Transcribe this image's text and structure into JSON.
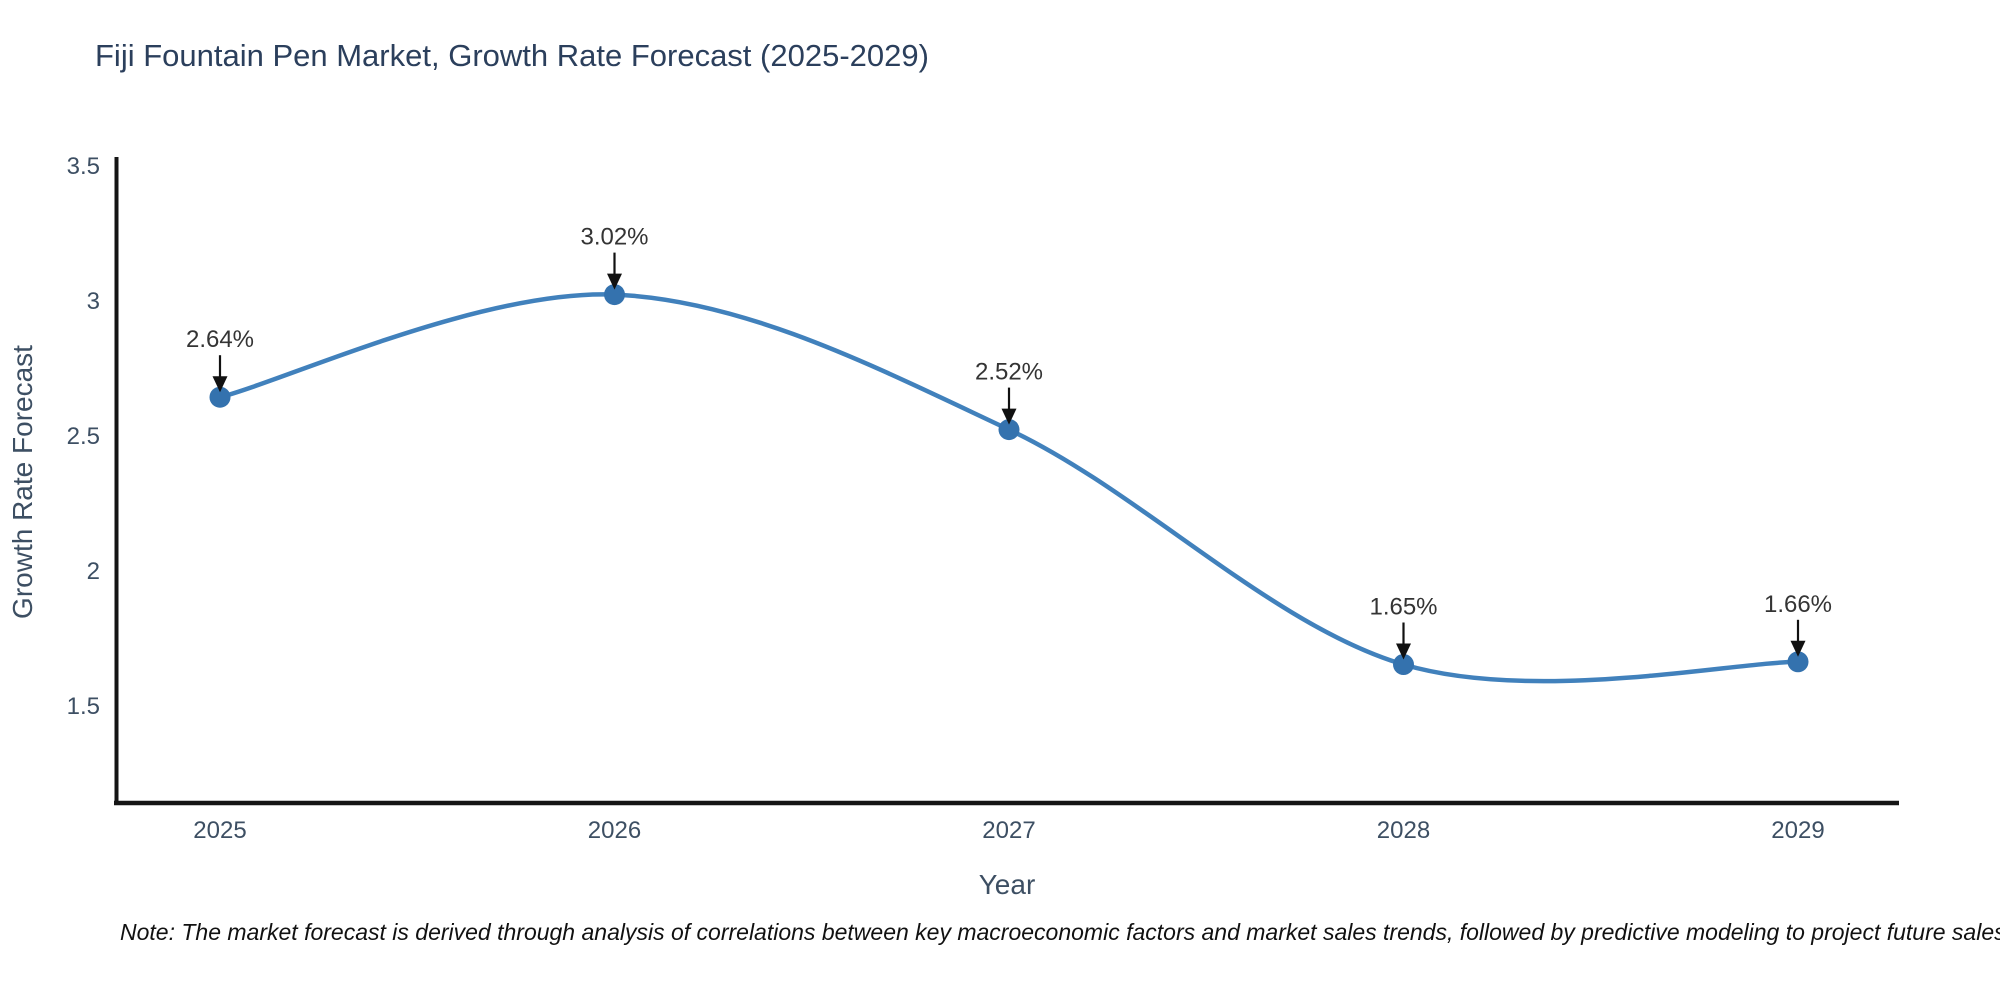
{
  "chart_data": {
    "type": "line",
    "title": "Fiji Fountain Pen Market, Growth Rate Forecast (2025-2029)",
    "xlabel": "Year",
    "ylabel": "Growth Rate Forecast",
    "categories": [
      "2025",
      "2026",
      "2027",
      "2028",
      "2029"
    ],
    "values": [
      2.64,
      3.02,
      2.52,
      1.65,
      1.66
    ],
    "point_labels": [
      "2.64%",
      "3.02%",
      "2.52%",
      "1.65%",
      "1.66%"
    ],
    "yticks": [
      "3.5",
      "3",
      "2.5",
      "2",
      "1.5"
    ],
    "ytick_values": [
      3.5,
      3.0,
      2.5,
      2.0,
      1.5
    ],
    "ylim": [
      1.15,
      3.5
    ],
    "grid": false,
    "legend_position": "none",
    "line_smooth": true,
    "colors": {
      "line": "#4181bc",
      "marker": "#3472ae",
      "axis": "#151515",
      "title_text": "#2b3f5c",
      "tick_text": "#3d4f63",
      "annotation_text": "#343434",
      "arrow": "#111111"
    }
  },
  "note": {
    "text": "Note: The market forecast is derived through analysis of correlations between key macroeconomic factors and market sales trends, followed by predictive modeling to project future sales"
  }
}
